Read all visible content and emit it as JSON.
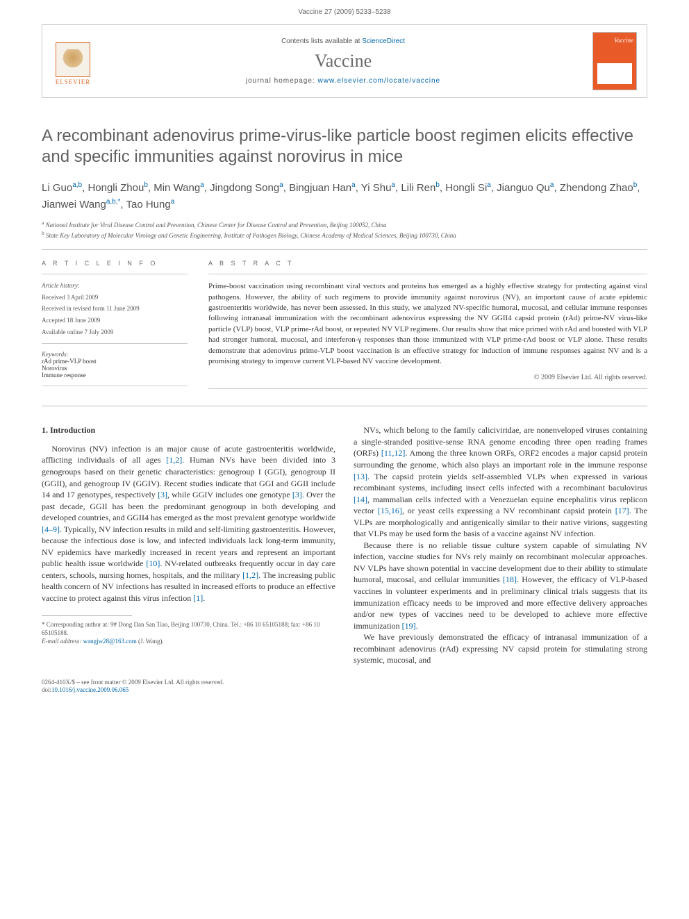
{
  "header": {
    "citation": "Vaccine 27 (2009) 5233–5238",
    "contents_prefix": "Contents lists available at ",
    "contents_link": "ScienceDirect",
    "journal_name": "Vaccine",
    "homepage_prefix": "journal homepage: ",
    "homepage_url": "www.elsevier.com/locate/vaccine",
    "publisher": "ELSEVIER",
    "cover_title": "Vaccine"
  },
  "title": "A recombinant adenovirus prime-virus-like particle boost regimen elicits effective and specific immunities against norovirus in mice",
  "authors_html": "Li Guo<sup class=\"aff-link\">a,b</sup>, Hongli Zhou<sup class=\"aff-link\">b</sup>, Min Wang<sup class=\"aff-link\">a</sup>, Jingdong Song<sup class=\"aff-link\">a</sup>, Bingjuan Han<sup class=\"aff-link\">a</sup>, Yi Shu<sup class=\"aff-link\">a</sup>, Lili Ren<sup class=\"aff-link\">b</sup>, Hongli Si<sup class=\"aff-link\">a</sup>, Jianguo Qu<sup class=\"aff-link\">a</sup>, Zhendong Zhao<sup class=\"aff-link\">b</sup>, Jianwei Wang<sup class=\"aff-link\">a,b,</sup><sup>*</sup>, Tao Hung<sup class=\"aff-link\">a</sup>",
  "affiliations": {
    "a": "National Institute for Viral Disease Control and Prevention, Chinese Center for Disease Control and Prevention, Beijing 100052, China",
    "b": "State Key Laboratory of Molecular Virology and Genetic Engineering, Institute of Pathogen Biology, Chinese Academy of Medical Sciences, Beijing 100730, China"
  },
  "article_info": {
    "heading": "A R T I C L E   I N F O",
    "history_label": "Article history:",
    "received": "Received 3 April 2009",
    "revised": "Received in revised form 11 June 2009",
    "accepted": "Accepted 18 June 2009",
    "online": "Available online 7 July 2009",
    "keywords_label": "Keywords:",
    "kw1": "rAd prime-VLP boost",
    "kw2": "Norovirus",
    "kw3": "Immune response"
  },
  "abstract": {
    "heading": "A B S T R A C T",
    "text": "Prime-boost vaccination using recombinant viral vectors and proteins has emerged as a highly effective strategy for protecting against viral pathogens. However, the ability of such regimens to provide immunity against norovirus (NV), an important cause of acute epidemic gastroenteritis worldwide, has never been assessed. In this study, we analyzed NV-specific humoral, mucosal, and cellular immune responses following intranasal immunization with the recombinant adenovirus expressing the NV GGII4 capsid protein (rAd) prime-NV virus-like particle (VLP) boost, VLP prime-rAd boost, or repeated NV VLP regimens. Our results show that mice primed with rAd and boosted with VLP had stronger humoral, mucosal, and interferon-γ responses than those immunized with VLP prime-rAd boost or VLP alone. These results demonstrate that adenovirus prime-VLP boost vaccination is an effective strategy for induction of immune responses against NV and is a promising strategy to improve current VLP-based NV vaccine development.",
    "copyright": "© 2009 Elsevier Ltd. All rights reserved."
  },
  "body": {
    "section_heading": "1. Introduction",
    "col1_p1": "Norovirus (NV) infection is an major cause of acute gastroenteritis worldwide, afflicting individuals of all ages [1,2]. Human NVs have been divided into 3 genogroups based on their genetic characteristics: genogroup I (GGI), genogroup II (GGII), and genogroup IV (GGIV). Recent studies indicate that GGI and GGII include 14 and 17 genotypes, respectively [3], while GGIV includes one genotype [3]. Over the past decade, GGII has been the predominant genogroup in both developing and developed countries, and GGII4 has emerged as the most prevalent genotype worldwide [4–9]. Typically, NV infection results in mild and self-limiting gastroenteritis. However, because the infectious dose is low, and infected individuals lack long-term immunity, NV epidemics have markedly increased in recent years and represent an important public health issue worldwide [10]. NV-related outbreaks frequently occur in day care centers, schools, nursing homes, hospitals, and the military [1,2]. The increasing public health concern of NV infections has resulted in increased efforts to produce an effective vaccine to protect against this virus infection [1].",
    "col2_p1": "NVs, which belong to the family caliciviridae, are nonenveloped viruses containing a single-stranded positive-sense RNA genome encoding three open reading frames (ORFs) [11,12]. Among the three known ORFs, ORF2 encodes a major capsid protein surrounding the genome, which also plays an important role in the immune response [13]. The capsid protein yields self-assembled VLPs when expressed in various recombinant systems, including insect cells infected with a recombinant baculovirus [14], mammalian cells infected with a Venezuelan equine encephalitis virus replicon vector [15,16], or yeast cells expressing a NV recombinant capsid protein [17]. The VLPs are morphologically and antigenically similar to their native virions, suggesting that VLPs may be used form the basis of a vaccine against NV infection.",
    "col2_p2": "Because there is no reliable tissue culture system capable of simulating NV infection, vaccine studies for NVs rely mainly on recombinant molecular approaches. NV VLPs have shown potential in vaccine development due to their ability to stimulate humoral, mucosal, and cellular immunities [18]. However, the efficacy of VLP-based vaccines in volunteer experiments and in preliminary clinical trials suggests that its immunization efficacy needs to be improved and more effective delivery approaches and/or new types of vaccines need to be developed to achieve more effective immunization [19].",
    "col2_p3": "We have previously demonstrated the efficacy of intranasal immunization of a recombinant adenovirus (rAd) expressing NV capsid protein for stimulating strong systemic, mucosal, and"
  },
  "footnotes": {
    "corr": "* Corresponding author at: 9# Dong Dan San Tiao, Beijing 100730, China. Tel.: +86 10 65105188; fax: +86 10 65105188.",
    "email_label": "E-mail address:",
    "email": "wangjw28@163.com",
    "email_suffix": "(J. Wang)."
  },
  "footer": {
    "line1": "0264-410X/$ – see front matter © 2009 Elsevier Ltd. All rights reserved.",
    "doi_label": "doi:",
    "doi": "10.1016/j.vaccine.2009.06.065"
  },
  "colors": {
    "link": "#0066aa",
    "accent": "#e07030",
    "cover": "#e85a28",
    "text_light": "#606060"
  }
}
